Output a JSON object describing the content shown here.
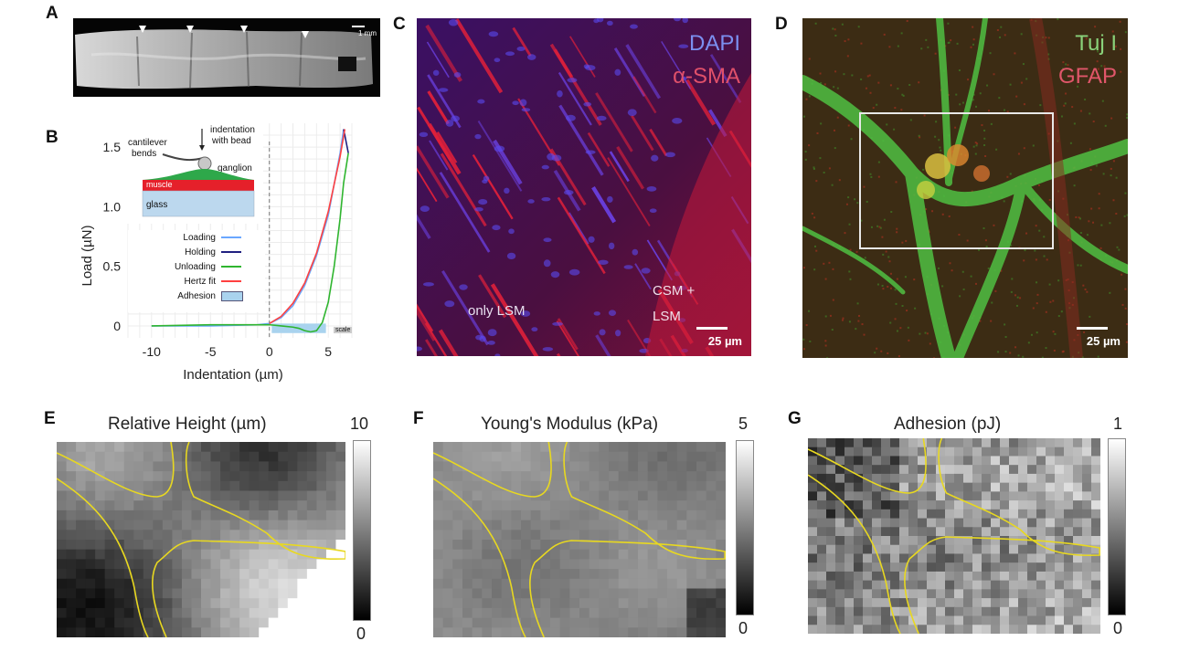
{
  "panels": {
    "A": {
      "label": "A",
      "scale": "1 mm"
    },
    "B": {
      "label": "B",
      "inset": {
        "cantilever": "cantilever",
        "bends": "bends",
        "indentation": "indentation",
        "with_bead": "with bead",
        "ganglion": "ganglion",
        "muscle": "muscle",
        "glass": "glass"
      },
      "legend": [
        "Loading",
        "Holding",
        "Unloading",
        "Hertz fit",
        "Adhesion"
      ],
      "corner_tag": "scale"
    },
    "C": {
      "label": "C",
      "stain1": "DAPI",
      "stain2": "α-SMA",
      "region1": "only LSM",
      "region2_line1": "CSM +",
      "region2_line2": "LSM",
      "scale": "25 µm",
      "colors": {
        "stain1": "#7b8ff0",
        "stain2": "#e0506a"
      }
    },
    "D": {
      "label": "D",
      "stain1": "Tuj I",
      "stain2": "GFAP",
      "scale": "25 µm",
      "colors": {
        "stain1": "#8ad27a",
        "stain2": "#e0566a"
      }
    },
    "E": {
      "label": "E",
      "title": "Relative Height (µm)",
      "cb_max": "10",
      "cb_min": "0"
    },
    "F": {
      "label": "F",
      "title": "Young's Modulus (kPa)",
      "cb_max": "5",
      "cb_min": "0"
    },
    "G": {
      "label": "G",
      "title": "Adhesion (pJ)",
      "cb_max": "1",
      "cb_min": "0"
    }
  },
  "chart_data": {
    "type": "line",
    "xlabel": "Indentation (µm)",
    "ylabel": "Load (µN)",
    "xticks": [
      "-10",
      "-5",
      "0",
      "5"
    ],
    "yticks": [
      "0",
      "0.5",
      "1.0",
      "1.5"
    ],
    "xlim": [
      -12,
      7
    ],
    "ylim": [
      -0.1,
      1.7
    ],
    "series": [
      {
        "name": "Loading",
        "color": "#6aa7ff",
        "x": [
          -10,
          -5,
          -1,
          0,
          1,
          2,
          3,
          4,
          5,
          6,
          6.3
        ],
        "y": [
          0,
          0,
          0.01,
          0.02,
          0.07,
          0.17,
          0.34,
          0.59,
          0.93,
          1.45,
          1.65
        ]
      },
      {
        "name": "Holding",
        "color": "#202080",
        "x": [
          6.3,
          6.7
        ],
        "y": [
          1.65,
          1.45
        ]
      },
      {
        "name": "Unloading",
        "color": "#2fb52f",
        "x": [
          6.7,
          6.3,
          6,
          5.5,
          5,
          4.5,
          4,
          3.5,
          3,
          2.5,
          2,
          1,
          0,
          -1,
          -5,
          -10
        ],
        "y": [
          1.45,
          1.2,
          0.9,
          0.5,
          0.2,
          0.03,
          -0.04,
          -0.05,
          -0.04,
          -0.02,
          -0.01,
          0,
          0.01,
          0.01,
          0.01,
          0
        ],
        "note": ""
      },
      {
        "name": "Hertz fit",
        "color": "#ff4040",
        "x": [
          0,
          1,
          2,
          3,
          4,
          5,
          6,
          6.4
        ],
        "y": [
          0.02,
          0.08,
          0.19,
          0.36,
          0.61,
          0.96,
          1.42,
          1.65
        ]
      }
    ],
    "adhesion_region": {
      "x": [
        0.2,
        4.8
      ],
      "y": [
        -0.06,
        0.02
      ],
      "color": "#a9d3ee"
    },
    "grid": true
  }
}
